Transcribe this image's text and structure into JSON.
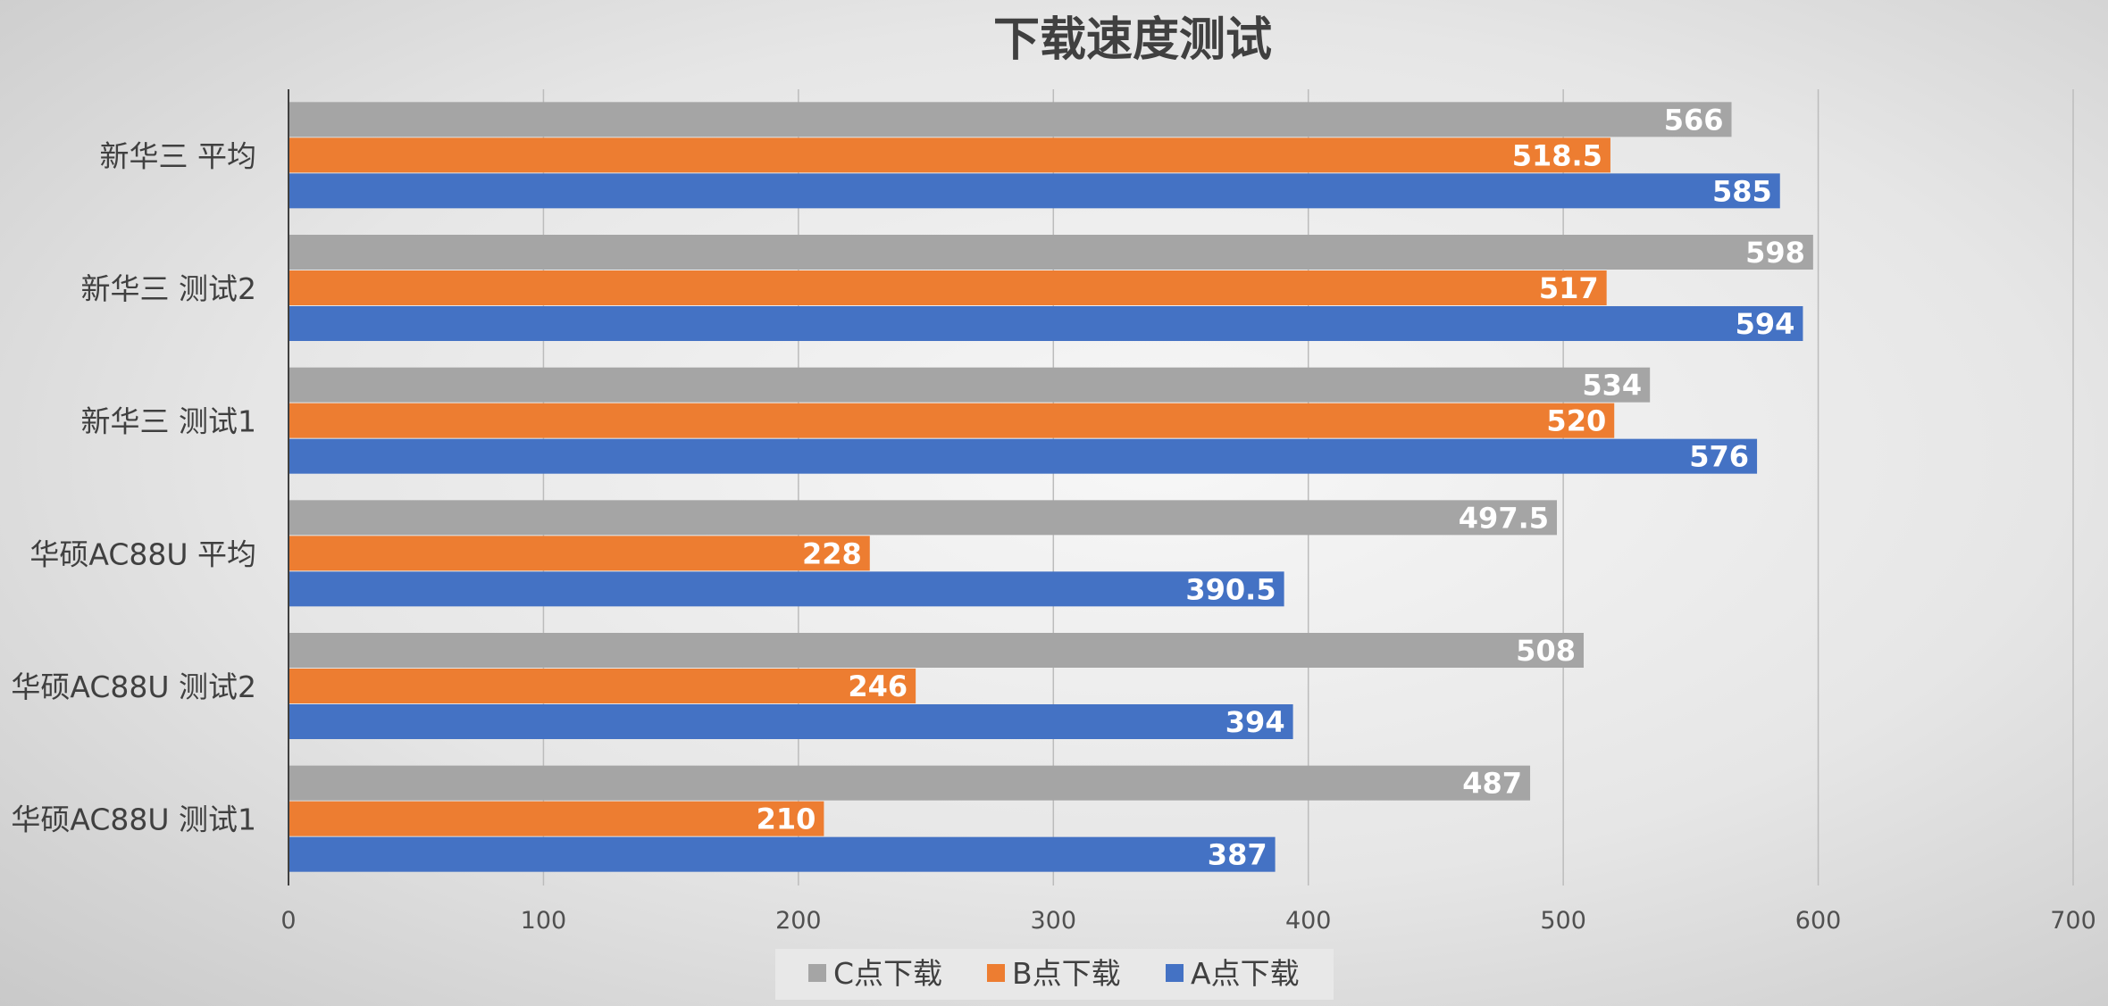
{
  "chart_data": {
    "type": "bar",
    "orientation": "horizontal",
    "title": "下载速度测试",
    "categories": [
      "新华三 平均",
      "新华三 测试2",
      "新华三 测试1",
      "华硕AC88U 平均",
      "华硕AC88U 测试2",
      "华硕AC88U 测试1"
    ],
    "series": [
      {
        "name": "C点下载",
        "color": "#a5a5a5",
        "values": [
          566,
          598,
          534,
          497.5,
          508,
          487
        ]
      },
      {
        "name": "B点下载",
        "color": "#ed7d31",
        "values": [
          518.5,
          517,
          520,
          228,
          246,
          210
        ]
      },
      {
        "name": "A点下载",
        "color": "#4472c4",
        "values": [
          585,
          594,
          576,
          390.5,
          394,
          387
        ]
      }
    ],
    "xlim": [
      0,
      700
    ],
    "xticks": [
      0,
      100,
      200,
      300,
      400,
      500,
      600,
      700
    ],
    "grid": true,
    "legend_position": "bottom",
    "data_labels": true
  }
}
